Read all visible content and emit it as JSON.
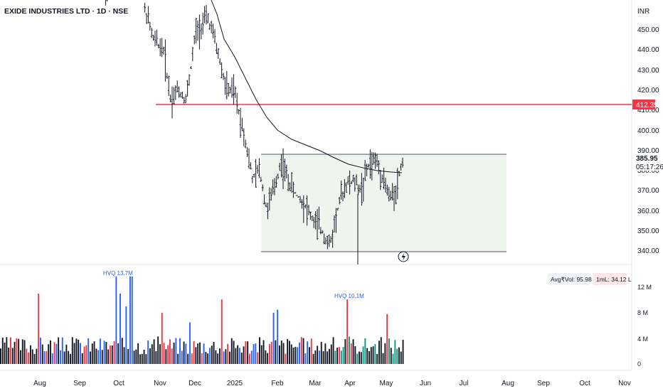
{
  "symbol_title": "EXIDE INDUSTRIES LTD · 1D · NSE",
  "currency": "INR",
  "price_ticks": [
    "450.00",
    "440.00",
    "430.00",
    "420.00",
    "410.00",
    "400.00",
    "390.00",
    "380.00",
    "370.00",
    "360.00",
    "350.00",
    "340.00"
  ],
  "price_label_current": "385.95",
  "price_label_countdown": "05:17:26",
  "price_label_level": "412.35",
  "volume_ticks": [
    "12 M",
    "8 M",
    "4 M",
    "0"
  ],
  "month_labels": [
    "Aug",
    "Sep",
    "Oct",
    "Nov",
    "Dec",
    "2025",
    "Feb",
    "Mar",
    "Apr",
    "May",
    "Jun",
    "Jul",
    "Aug",
    "Sep",
    "Oct",
    "Nov"
  ],
  "avg_vol_label": "Avg₹Vol: 95.98 Cr",
  "onem_label": "1mL: 34.12 L",
  "hvq_labels": [
    "HVQ 13.7M",
    "HVQ 10.1M"
  ],
  "colors": {
    "up": "#2962ff",
    "down": "#f23645",
    "neutral": "#131722",
    "level_line": "#f23645",
    "box_fill": "#eaf3ea",
    "volume_up": "#089981"
  },
  "chart_data": {
    "type": "ohlc",
    "ylim": [
      335,
      458
    ],
    "horizontal_level": 412.35,
    "range_box": {
      "top": 388,
      "bottom": 340
    },
    "price_series_close_approx": [
      {
        "x": "2024-10-01",
        "y": 456
      },
      {
        "x": "2024-10-15",
        "y": 452
      },
      {
        "x": "2024-11-01",
        "y": 445
      },
      {
        "x": "2024-11-15",
        "y": 418
      },
      {
        "x": "2024-12-01",
        "y": 440
      },
      {
        "x": "2024-12-10",
        "y": 456
      },
      {
        "x": "2024-12-20",
        "y": 432
      },
      {
        "x": "2025-01-01",
        "y": 415
      },
      {
        "x": "2025-01-15",
        "y": 393
      },
      {
        "x": "2025-01-25",
        "y": 348
      },
      {
        "x": "2025-02-05",
        "y": 385
      },
      {
        "x": "2025-02-15",
        "y": 372
      },
      {
        "x": "2025-03-01",
        "y": 355
      },
      {
        "x": "2025-03-15",
        "y": 345
      },
      {
        "x": "2025-03-28",
        "y": 368
      },
      {
        "x": "2025-04-10",
        "y": 362
      },
      {
        "x": "2025-04-20",
        "y": 385
      },
      {
        "x": "2025-05-05",
        "y": 372
      },
      {
        "x": "2025-05-14",
        "y": 385.95
      }
    ],
    "volume_max_tick": "12 M"
  }
}
